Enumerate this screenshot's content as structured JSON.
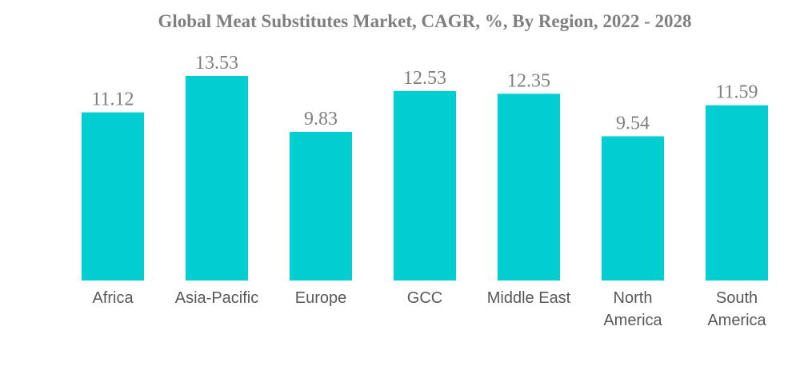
{
  "chart_data": {
    "type": "bar",
    "title": "Global Meat Substitutes Market, CAGR, %, By Region, 2022 - 2028",
    "xlabel": "",
    "ylabel": "",
    "categories": [
      [
        "Africa"
      ],
      [
        "Asia-Pacific"
      ],
      [
        "Europe"
      ],
      [
        "GCC"
      ],
      [
        "Middle East"
      ],
      [
        "North",
        "America"
      ],
      [
        "South",
        "America"
      ]
    ],
    "values": [
      11.12,
      13.53,
      9.83,
      12.53,
      12.35,
      9.54,
      11.59
    ],
    "value_labels": [
      "11.12",
      "13.53",
      "9.83",
      "12.53",
      "12.35",
      "9.54",
      "11.59"
    ],
    "ylim": [
      0,
      13.53
    ],
    "grid": false,
    "legend": "none",
    "bar_color": "#00CED1"
  }
}
